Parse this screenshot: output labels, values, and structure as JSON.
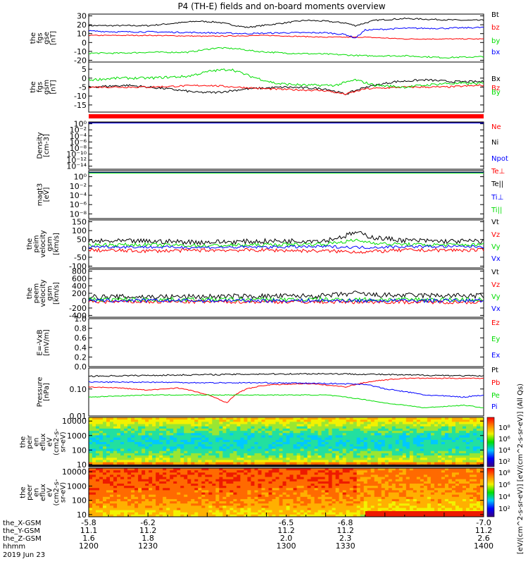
{
  "title": "P4 (TH-E) fields and on-board moments overview",
  "colors": {
    "black": "#000000",
    "red": "#ff0000",
    "green": "#00dd00",
    "blue": "#0000ff"
  },
  "chart_data": [
    {
      "type": "line",
      "ylabel": [
        "the",
        "fgs",
        "gse",
        "[nT]"
      ],
      "ylim": [
        -22,
        32
      ],
      "ticks": [
        {
          "v": 30,
          "l": "30"
        },
        {
          "v": 20,
          "l": "20"
        },
        {
          "v": 10,
          "l": "10"
        },
        {
          "v": 0,
          "l": "0"
        },
        {
          "v": -10,
          "l": "-10"
        },
        {
          "v": -20,
          "l": "-20"
        }
      ],
      "series": [
        {
          "name": "Bt",
          "color": "black",
          "noise": 0.8,
          "x": [
            1200,
            1215,
            1230,
            1245,
            1255,
            1265,
            1280,
            1295,
            1310,
            1320,
            1330,
            1335,
            1345,
            1360,
            1375,
            1390,
            1400
          ],
          "y": [
            19,
            19,
            19,
            22,
            24,
            23,
            17,
            21,
            25,
            24,
            22,
            19,
            25,
            27,
            26,
            25,
            25
          ]
        },
        {
          "name": "bz",
          "color": "red",
          "noise": 0.5,
          "x": [
            1200,
            1230,
            1260,
            1290,
            1320,
            1340,
            1360,
            1380,
            1400
          ],
          "y": [
            8,
            8,
            7,
            8,
            6,
            6,
            4,
            4,
            4
          ]
        },
        {
          "name": "by",
          "color": "green",
          "noise": 0.8,
          "x": [
            1200,
            1215,
            1230,
            1250,
            1265,
            1275,
            1285,
            1300,
            1320,
            1340,
            1360,
            1380,
            1400
          ],
          "y": [
            -12,
            -12,
            -11,
            -11,
            -6,
            -7,
            -10,
            -12,
            -13,
            -15,
            -15,
            -17,
            -16
          ]
        },
        {
          "name": "bx",
          "color": "blue",
          "noise": 0.8,
          "x": [
            1200,
            1215,
            1230,
            1260,
            1280,
            1300,
            1320,
            1330,
            1335,
            1340,
            1360,
            1380,
            1400
          ],
          "y": [
            13,
            12,
            12,
            11,
            10,
            11,
            11,
            9,
            5,
            14,
            16,
            16,
            17
          ]
        }
      ]
    },
    {
      "type": "line",
      "ylabel": [
        "the",
        "fgs",
        "gsm",
        "[nT]"
      ],
      "ylim": [
        -19,
        9
      ],
      "ticks": [
        {
          "v": 5,
          "l": "5"
        },
        {
          "v": 0,
          "l": "0"
        },
        {
          "v": -5,
          "l": "-5"
        },
        {
          "v": -10,
          "l": "-10"
        },
        {
          "v": -15,
          "l": "-15"
        }
      ],
      "series": [
        {
          "name": "Bx",
          "color": "black",
          "noise": 0.6,
          "x": [
            1200,
            1220,
            1240,
            1255,
            1265,
            1280,
            1300,
            1320,
            1330,
            1340,
            1355,
            1370,
            1385,
            1400
          ],
          "y": [
            -5,
            -4,
            -6,
            -8,
            -8,
            -6,
            -5,
            -6,
            -9,
            -5,
            -2,
            -1,
            -2,
            -2
          ]
        },
        {
          "name": "Bz",
          "color": "red",
          "noise": 0.5,
          "x": [
            1200,
            1230,
            1260,
            1290,
            1320,
            1330,
            1340,
            1360,
            1380,
            1400
          ],
          "y": [
            -5,
            -5,
            -4,
            -6,
            -7,
            -9,
            -6,
            -5,
            -5,
            -4
          ]
        },
        {
          "name": "By",
          "color": "green",
          "noise": 0.7,
          "x": [
            1200,
            1215,
            1230,
            1250,
            1262,
            1272,
            1282,
            1295,
            1310,
            1325,
            1335,
            1345,
            1360,
            1380,
            1400
          ],
          "y": [
            -1,
            0,
            0,
            1,
            4,
            5,
            1,
            -3,
            -4,
            -4,
            -1,
            -4,
            -5,
            -3,
            -3
          ]
        }
      ]
    },
    {
      "type": "line",
      "ylabel": [
        "Density",
        "[cm-3]"
      ],
      "log": true,
      "ylim": [
        1e-15,
        4
      ],
      "ticks": [
        {
          "v": 1,
          "l": "10⁰"
        },
        {
          "v": 0.01,
          "l": "10⁻²"
        },
        {
          "v": 0.0001,
          "l": "10⁻⁴"
        },
        {
          "v": 1e-06,
          "l": "10⁻⁶"
        },
        {
          "v": 1e-08,
          "l": "10⁻⁸"
        },
        {
          "v": 1e-10,
          "l": "10⁻¹⁰"
        },
        {
          "v": 1e-12,
          "l": "10⁻¹²"
        },
        {
          "v": 1e-14,
          "l": "10⁻¹⁴"
        }
      ],
      "series": [
        {
          "name": "Ne",
          "color": "red",
          "noise": 0,
          "x": [
            1200,
            1400
          ],
          "y": [
            2,
            2
          ]
        },
        {
          "name": "Ni",
          "color": "black",
          "noise": 0,
          "x": [
            1200,
            1400
          ],
          "y": [
            2.2,
            2.2
          ]
        },
        {
          "name": "Npot",
          "color": "blue",
          "noise": 0,
          "x": [
            1200,
            1400
          ],
          "y": [
            1.8,
            1.8
          ]
        }
      ]
    },
    {
      "type": "line",
      "ylabel": [
        "magt3",
        "[eV]"
      ],
      "log": true,
      "ylim": [
        1e-09,
        20
      ],
      "ticks": [
        {
          "v": 1,
          "l": "10⁰"
        },
        {
          "v": 0.01,
          "l": "10⁻²"
        },
        {
          "v": 0.0001,
          "l": "10⁻⁴"
        },
        {
          "v": 1e-06,
          "l": "10⁻⁶"
        },
        {
          "v": 1e-08,
          "l": "10⁻⁸"
        }
      ],
      "series": [
        {
          "name": "Te⊥",
          "color": "red",
          "noise": 0,
          "x": [
            1200,
            1400
          ],
          "y": [
            8,
            8
          ]
        },
        {
          "name": "Te||",
          "color": "black",
          "noise": 0,
          "x": [
            1200,
            1400
          ],
          "y": [
            9,
            9
          ]
        },
        {
          "name": "Ti⊥",
          "color": "blue",
          "noise": 0,
          "x": [
            1200,
            1400
          ],
          "y": [
            7,
            7
          ]
        },
        {
          "name": "Ti||",
          "color": "green",
          "noise": 0,
          "x": [
            1200,
            1400
          ],
          "y": [
            6,
            6
          ]
        }
      ]
    },
    {
      "type": "line",
      "ylabel": [
        "the",
        "peim",
        "velocity",
        "gsm",
        "[km/s]"
      ],
      "ylim": [
        -110,
        160
      ],
      "ticks": [
        {
          "v": 150,
          "l": "150"
        },
        {
          "v": 100,
          "l": "100"
        },
        {
          "v": 50,
          "l": "50"
        },
        {
          "v": 0,
          "l": "0"
        },
        {
          "v": -50,
          "l": "-50"
        },
        {
          "v": -100,
          "l": "-100"
        }
      ],
      "series": [
        {
          "name": "Vt",
          "color": "black",
          "noise": 14,
          "x": [
            1200,
            1230,
            1260,
            1290,
            1320,
            1330,
            1335,
            1345,
            1360,
            1380,
            1400
          ],
          "y": [
            40,
            40,
            35,
            40,
            45,
            70,
            90,
            60,
            45,
            40,
            40
          ]
        },
        {
          "name": "Vz",
          "color": "red",
          "noise": 10,
          "x": [
            1200,
            1230,
            1260,
            1290,
            1320,
            1340,
            1360,
            1380,
            1400
          ],
          "y": [
            -10,
            -15,
            -10,
            -10,
            -15,
            -20,
            -10,
            -10,
            -10
          ]
        },
        {
          "name": "Vy",
          "color": "green",
          "noise": 10,
          "x": [
            1200,
            1230,
            1260,
            1290,
            1320,
            1335,
            1350,
            1370,
            1400
          ],
          "y": [
            20,
            20,
            15,
            20,
            25,
            45,
            25,
            20,
            20
          ]
        },
        {
          "name": "Vx",
          "color": "blue",
          "noise": 8,
          "x": [
            1200,
            1260,
            1320,
            1340,
            1360,
            1400
          ],
          "y": [
            10,
            5,
            10,
            5,
            10,
            10
          ]
        }
      ]
    },
    {
      "type": "line",
      "ylabel": [
        "the",
        "peem",
        "velocity",
        "gsm",
        "[km/s]"
      ],
      "ylim": [
        -450,
        850
      ],
      "ticks": [
        {
          "v": 800,
          "l": "800"
        },
        {
          "v": 600,
          "l": "600"
        },
        {
          "v": 400,
          "l": "400"
        },
        {
          "v": 200,
          "l": "200"
        },
        {
          "v": 0,
          "l": "0"
        },
        {
          "v": -200,
          "l": "-200"
        },
        {
          "v": -400,
          "l": "-400"
        }
      ],
      "series": [
        {
          "name": "Vt",
          "color": "black",
          "noise": 70,
          "x": [
            1200,
            1260,
            1320,
            1335,
            1345,
            1370,
            1400
          ],
          "y": [
            100,
            110,
            130,
            200,
            150,
            140,
            130
          ]
        },
        {
          "name": "Vz",
          "color": "red",
          "noise": 50,
          "x": [
            1200,
            1300,
            1400
          ],
          "y": [
            -30,
            -30,
            -40
          ]
        },
        {
          "name": "Vy",
          "color": "green",
          "noise": 60,
          "x": [
            1200,
            1300,
            1400
          ],
          "y": [
            30,
            30,
            30
          ]
        },
        {
          "name": "Vx",
          "color": "blue",
          "noise": 50,
          "x": [
            1200,
            1300,
            1400
          ],
          "y": [
            0,
            0,
            0
          ]
        }
      ]
    },
    {
      "type": "line",
      "ylabel": [
        "E=-VxB",
        "[mV/m]"
      ],
      "ylim": [
        0,
        1
      ],
      "ticks": [
        {
          "v": 1,
          "l": "1.0"
        },
        {
          "v": 0.8,
          "l": "0.8"
        },
        {
          "v": 0.6,
          "l": "0.6"
        },
        {
          "v": 0.4,
          "l": "0.4"
        },
        {
          "v": 0.2,
          "l": "0.2"
        },
        {
          "v": 0,
          "l": "0.0"
        }
      ],
      "series": [
        {
          "name": "Ez",
          "color": "red",
          "noise": 0,
          "x": [],
          "y": []
        },
        {
          "name": "Ey",
          "color": "green",
          "noise": 0,
          "x": [],
          "y": []
        },
        {
          "name": "Ex",
          "color": "blue",
          "noise": 0,
          "x": [],
          "y": []
        }
      ]
    },
    {
      "type": "line",
      "ylabel": [
        "Pressure",
        "[nPa]"
      ],
      "log": true,
      "ylim": [
        0.01,
        0.6
      ],
      "ticks": [
        {
          "v": 0.1,
          "l": "0.10"
        },
        {
          "v": 0.01,
          "l": "0.01"
        }
      ],
      "series": [
        {
          "name": "Pt",
          "color": "black",
          "noise": 0.015,
          "x": [
            1200,
            1230,
            1260,
            1290,
            1320,
            1345,
            1360,
            1380,
            1400
          ],
          "y": [
            0.3,
            0.32,
            0.34,
            0.36,
            0.37,
            0.35,
            0.33,
            0.32,
            0.3
          ]
        },
        {
          "name": "Pb",
          "color": "red",
          "noise": 0.01,
          "x": [
            1200,
            1215,
            1230,
            1245,
            1260,
            1270,
            1280,
            1290,
            1310,
            1330,
            1345,
            1360,
            1380,
            1400
          ],
          "y": [
            0.12,
            0.11,
            0.09,
            0.11,
            0.06,
            0.03,
            0.1,
            0.14,
            0.16,
            0.12,
            0.2,
            0.25,
            0.25,
            0.25
          ]
        },
        {
          "name": "Pe",
          "color": "green",
          "noise": 0.008,
          "x": [
            1200,
            1230,
            1260,
            1290,
            1320,
            1340,
            1350,
            1370,
            1390,
            1400
          ],
          "y": [
            0.05,
            0.06,
            0.06,
            0.06,
            0.06,
            0.04,
            0.03,
            0.02,
            0.025,
            0.02
          ]
        },
        {
          "name": "Pi",
          "color": "blue",
          "noise": 0.012,
          "x": [
            1200,
            1230,
            1260,
            1290,
            1320,
            1340,
            1350,
            1370,
            1390,
            1400
          ],
          "y": [
            0.18,
            0.18,
            0.17,
            0.17,
            0.16,
            0.15,
            0.1,
            0.06,
            0.05,
            0.06
          ]
        }
      ]
    },
    {
      "type": "heatmap",
      "ylabel": [
        "the",
        "peir",
        "en",
        "eflux",
        "eV",
        "(cm2-s-",
        "sr-eV)"
      ],
      "log": true,
      "ylim": [
        7,
        18000
      ],
      "ticks": [
        {
          "v": 10000,
          "l": "10000"
        },
        {
          "v": 1000,
          "l": "1000"
        },
        {
          "v": 100,
          "l": "100"
        },
        {
          "v": 10,
          "l": "10"
        }
      ]
    },
    {
      "type": "heatmap",
      "ylabel": [
        "the",
        "peer",
        "en",
        "eflux",
        "eV",
        "(cm2-s-",
        "sr-eV)"
      ],
      "log": true,
      "ylim": [
        7,
        18000
      ],
      "ticks": [
        {
          "v": 10000,
          "l": "10000"
        },
        {
          "v": 1000,
          "l": "1000"
        },
        {
          "v": 100,
          "l": "100"
        },
        {
          "v": 10,
          "l": "10"
        }
      ]
    }
  ],
  "colorbar": {
    "labels_upper": [
      "10⁸",
      "10⁶",
      "10⁴",
      "10²"
    ],
    "labels_lower": [
      "10⁸",
      "10⁶",
      "10⁴",
      "10²"
    ],
    "label": "[eV/(cm^2-s-sr-eV)] [eV/(cm^2-s-sr-eV)] (All Qs)"
  },
  "xaxis": {
    "range": [
      1200,
      1400
    ],
    "rows": [
      {
        "name": "the_X-GSM",
        "values": [
          "-5.8",
          "-6.2",
          "-6.5",
          "-6.8",
          "-7.0"
        ]
      },
      {
        "name": "the_Y-GSM",
        "values": [
          "11.1",
          "11.2",
          "11.2",
          "11.2",
          "11.2"
        ]
      },
      {
        "name": "the_Z-GSM",
        "values": [
          "1.6",
          "1.8",
          "2.0",
          "2.3",
          "2.6"
        ]
      },
      {
        "name": "hhmm",
        "values": [
          "1200",
          "1230",
          "1300",
          "1330",
          "1400"
        ]
      }
    ],
    "date": "2019 Jun 23"
  }
}
